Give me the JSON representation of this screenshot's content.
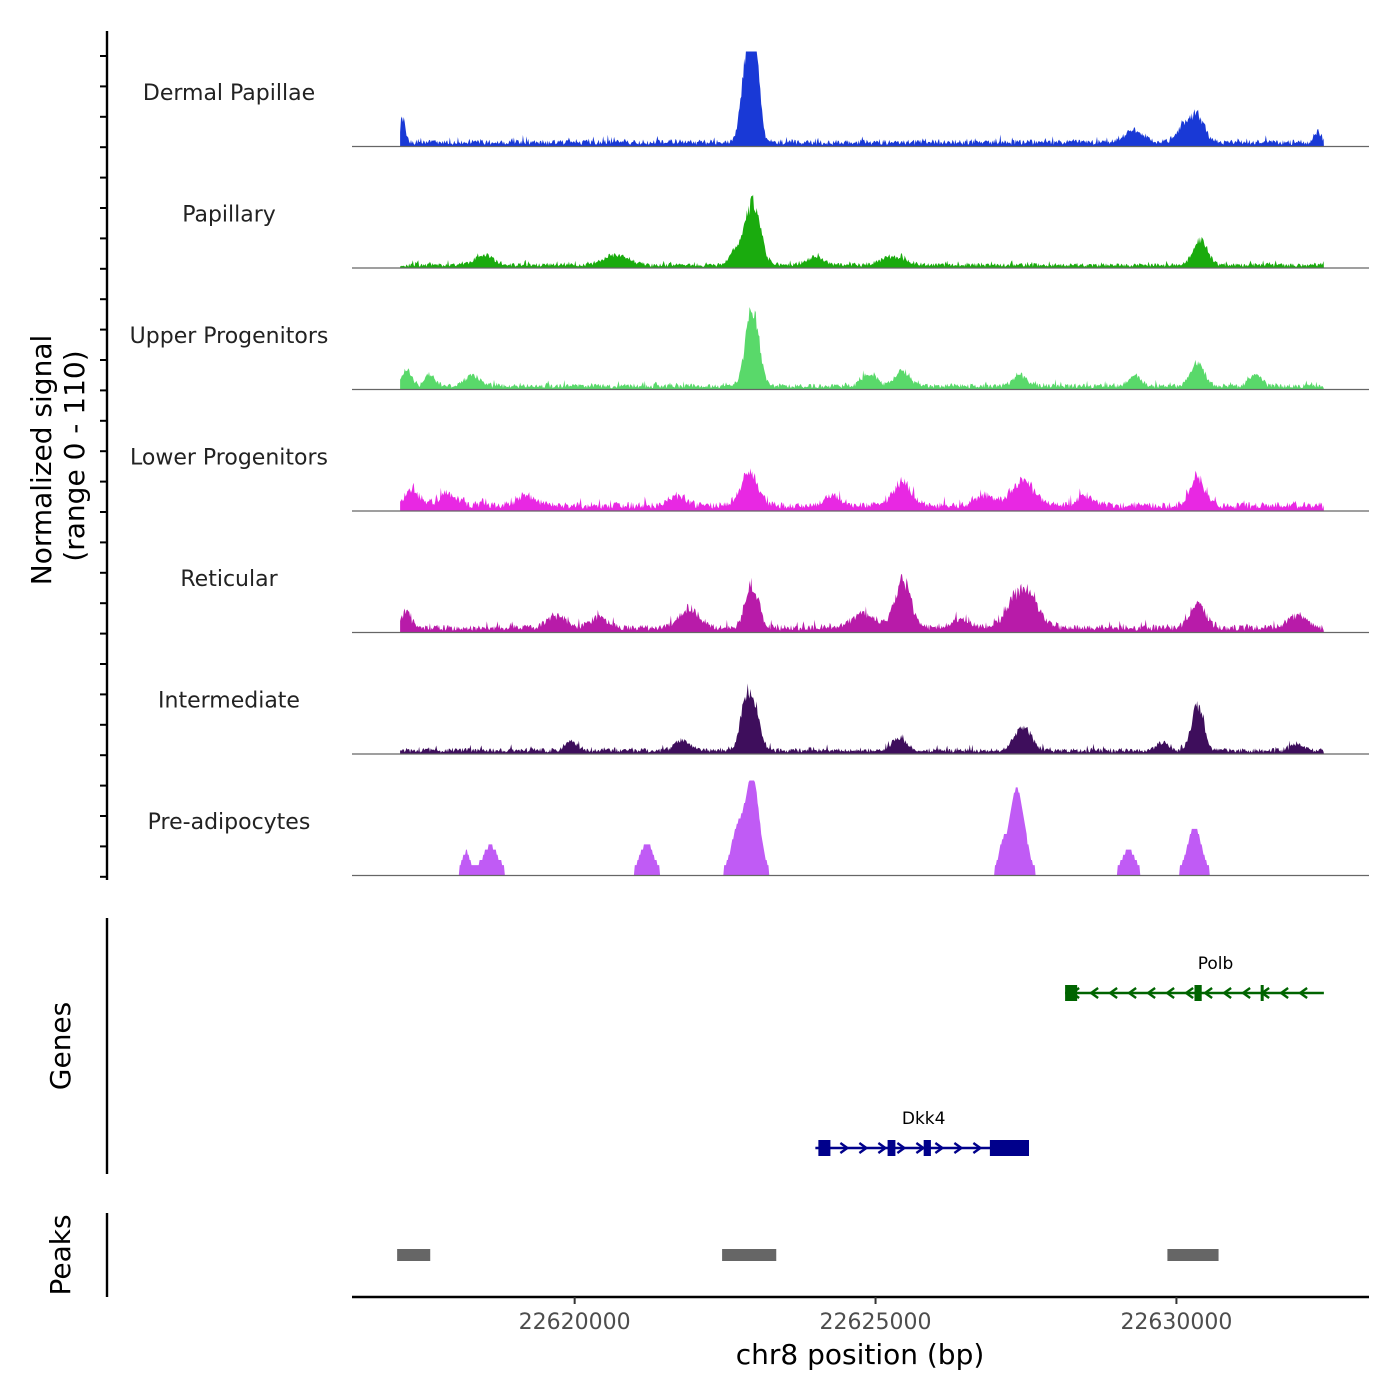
{
  "chart_data": {
    "type": "area",
    "title": "",
    "ylabel": "Normalized signal",
    "ylabel_range": "(range 0 - 110)",
    "xlabel": "chr8 position (bp)",
    "xlim": [
      22616300,
      22633200
    ],
    "ylim": [
      0,
      110
    ],
    "x_ticks": [
      22620000,
      22625000,
      22630000
    ],
    "x_tick_labels": [
      "22620000",
      "22625000",
      "22630000"
    ],
    "signal_range": [
      22617100,
      22632450
    ],
    "background": {
      "Dermal Papillae": 7,
      "Papillary": 5,
      "Upper Progenitors": 6,
      "Lower Progenitors": 9,
      "Reticular": 8,
      "Intermediate": 6,
      "Pre-adipocytes": 0
    },
    "series": [
      {
        "name": "Dermal Papillae",
        "color": "#1939d6",
        "peaks": [
          [
            22617150,
            28,
            40
          ],
          [
            22622850,
            85,
            90
          ],
          [
            22622950,
            110,
            60
          ],
          [
            22623050,
            60,
            60
          ],
          [
            22630350,
            30,
            120
          ],
          [
            22629300,
            14,
            160
          ],
          [
            22630100,
            16,
            120
          ],
          [
            22632350,
            13,
            60
          ]
        ]
      },
      {
        "name": "Papillary",
        "color": "#1aab0e",
        "peaks": [
          [
            22622950,
            72,
            130
          ],
          [
            22622650,
            14,
            80
          ],
          [
            22620700,
            12,
            200
          ],
          [
            22630400,
            28,
            120
          ],
          [
            22618500,
            12,
            150
          ],
          [
            22625300,
            10,
            200
          ],
          [
            22624000,
            9,
            150
          ]
        ]
      },
      {
        "name": "Upper Progenitors",
        "color": "#59d96a",
        "peaks": [
          [
            22622950,
            88,
            110
          ],
          [
            22617200,
            18,
            80
          ],
          [
            22617600,
            14,
            80
          ],
          [
            22618300,
            12,
            120
          ],
          [
            22625450,
            18,
            120
          ],
          [
            22624900,
            14,
            120
          ],
          [
            22627400,
            12,
            120
          ],
          [
            22630350,
            26,
            110
          ],
          [
            22631300,
            12,
            100
          ],
          [
            22629300,
            12,
            100
          ]
        ]
      },
      {
        "name": "Lower Progenitors",
        "color": "#e828e3",
        "peaks": [
          [
            22622900,
            36,
            150
          ],
          [
            22625450,
            26,
            150
          ],
          [
            22627450,
            28,
            200
          ],
          [
            22630350,
            33,
            120
          ],
          [
            22617300,
            16,
            150
          ],
          [
            22617900,
            14,
            150
          ],
          [
            22626800,
            12,
            150
          ],
          [
            22619200,
            12,
            150
          ],
          [
            22621700,
            11,
            150
          ],
          [
            22624300,
            11,
            150
          ],
          [
            22628500,
            11,
            150
          ]
        ]
      },
      {
        "name": "Reticular",
        "color": "#b81ba9",
        "peaks": [
          [
            22622950,
            50,
            110
          ],
          [
            22625450,
            55,
            130
          ],
          [
            22627450,
            45,
            220
          ],
          [
            22630350,
            26,
            130
          ],
          [
            22621900,
            20,
            180
          ],
          [
            22624800,
            16,
            200
          ],
          [
            22617200,
            18,
            80
          ],
          [
            22619700,
            14,
            150
          ],
          [
            22620400,
            12,
            150
          ],
          [
            22626400,
            11,
            150
          ],
          [
            22632000,
            14,
            150
          ]
        ]
      },
      {
        "name": "Intermediate",
        "color": "#3e0e5c",
        "peaks": [
          [
            22622950,
            62,
            110
          ],
          [
            22622800,
            28,
            80
          ],
          [
            22627450,
            30,
            130
          ],
          [
            22630350,
            54,
            100
          ],
          [
            22625400,
            14,
            130
          ],
          [
            22621800,
            12,
            130
          ],
          [
            22619950,
            11,
            100
          ],
          [
            22629750,
            9,
            100
          ],
          [
            22632000,
            8,
            100
          ]
        ]
      },
      {
        "name": "Pre-adipocytes",
        "color": "#c05bf5",
        "peaks": [
          [
            22622950,
            110,
            110
          ],
          [
            22622700,
            45,
            100
          ],
          [
            22627350,
            95,
            120
          ],
          [
            22630300,
            50,
            110
          ],
          [
            22621200,
            33,
            100
          ],
          [
            22618600,
            28,
            120
          ],
          [
            22627100,
            24,
            60
          ],
          [
            22629200,
            24,
            100
          ],
          [
            22618200,
            22,
            60
          ]
        ]
      }
    ],
    "genes_track": {
      "title": "Genes",
      "genes": [
        {
          "name": "Polb",
          "strand": "-",
          "color": "#006400",
          "start": 22628150,
          "end": 22632450,
          "exons": [
            [
              22628150,
              22628350
            ],
            [
              22630300,
              22630420
            ],
            [
              22631400,
              22631450
            ]
          ]
        },
        {
          "name": "Dkk4",
          "strand": "+",
          "color": "#00008b",
          "start": 22624000,
          "end": 22627550,
          "exons": [
            [
              22624050,
              22624250
            ],
            [
              22625200,
              22625330
            ],
            [
              22625800,
              22625920
            ],
            [
              22626900,
              22627550
            ]
          ]
        }
      ]
    },
    "peaks_track": {
      "title": "Peaks",
      "color": "#666666",
      "regions": [
        [
          22617050,
          22617600
        ],
        [
          22622450,
          22623350
        ],
        [
          22629850,
          22630700
        ]
      ]
    }
  }
}
